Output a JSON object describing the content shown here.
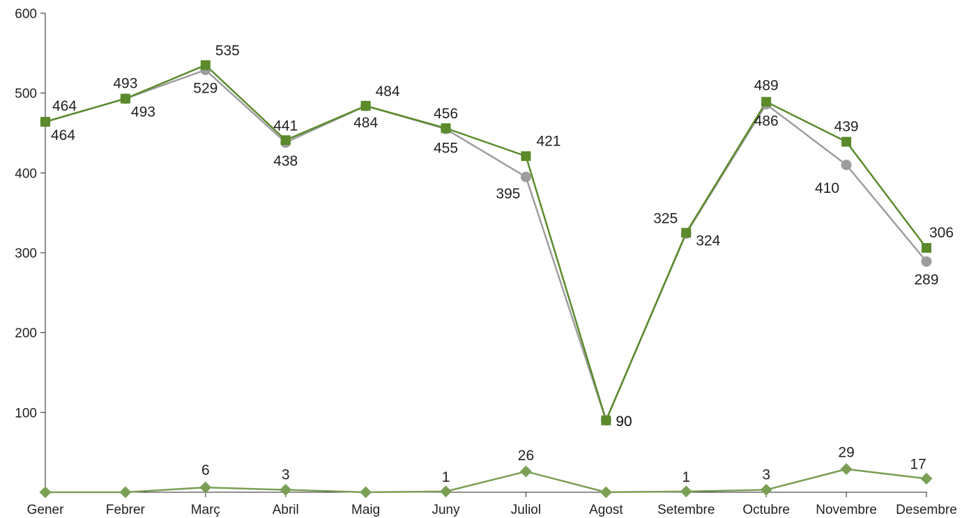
{
  "chart_data": {
    "type": "line",
    "title": "",
    "xlabel": "",
    "ylabel": "",
    "ylim": [
      0,
      600
    ],
    "yticks": [
      100,
      200,
      300,
      400,
      500,
      600
    ],
    "grid": false,
    "legend": "none",
    "categories": [
      "Gener",
      "Febrer",
      "Març",
      "Abril",
      "Maig",
      "Juny",
      "Juliol",
      "Agost",
      "Setembre",
      "Octubre",
      "Novembre",
      "Desembre"
    ],
    "series": [
      {
        "marker": "circle",
        "color": "#9d9d9f",
        "values": [
          464,
          493,
          529,
          438,
          484,
          455,
          395,
          90,
          324,
          486,
          410,
          289
        ],
        "labels": [
          "464",
          "493",
          "529",
          "438",
          "484",
          "455",
          "395",
          "90",
          "324",
          "486",
          "410",
          "289"
        ]
      },
      {
        "marker": "square",
        "color": "#5a8a2a",
        "values": [
          464,
          493,
          535,
          441,
          484,
          456,
          421,
          90,
          325,
          489,
          439,
          306
        ],
        "labels": [
          "464",
          "493",
          "535",
          "441",
          "484",
          "456",
          "421",
          "90",
          "325",
          "489",
          "439",
          "306"
        ]
      },
      {
        "marker": "diamond",
        "color": "#7a9f55",
        "values": [
          0,
          0,
          6,
          3,
          0,
          1,
          26,
          0,
          1,
          3,
          29,
          17
        ],
        "labels": [
          "",
          "",
          "6",
          "3",
          "",
          "1",
          "26",
          "",
          "1",
          "3",
          "29",
          "17"
        ]
      }
    ]
  }
}
